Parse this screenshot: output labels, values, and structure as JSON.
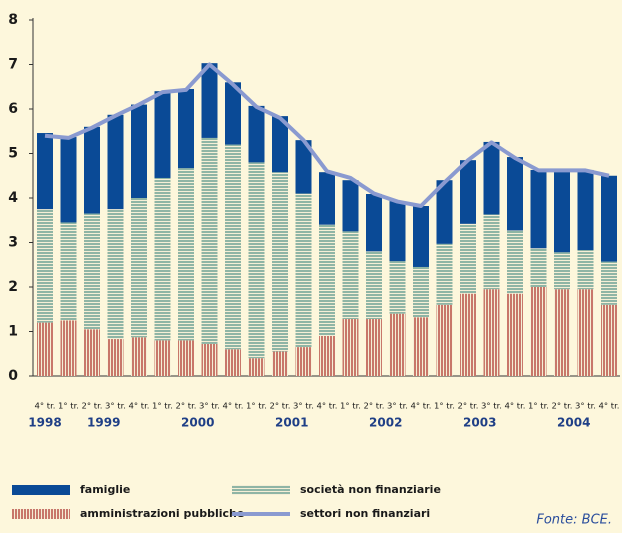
{
  "chart_data": {
    "type": "bar",
    "stacked": true,
    "categories": [
      "4° tr.",
      "1° tr.",
      "2° tr.",
      "3° tr.",
      "4° tr.",
      "1° tr.",
      "2° tr.",
      "3° tr.",
      "4° tr.",
      "1° tr.",
      "2° tr.",
      "3° tr.",
      "4° tr.",
      "1° tr.",
      "2° tr.",
      "3° tr.",
      "4° tr.",
      "1° tr.",
      "2° tr.",
      "3° tr.",
      "4° tr.",
      "1° tr.",
      "2° tr.",
      "3° tr.",
      "4° tr."
    ],
    "years": [
      "1998",
      "1999",
      "2000",
      "2001",
      "2002",
      "2003",
      "2004"
    ],
    "series": [
      {
        "name": "amministrazioni pubbliche",
        "color": "#c8776a",
        "kind": "bar",
        "values": [
          1.2,
          1.25,
          1.05,
          0.83,
          0.87,
          0.8,
          0.8,
          0.72,
          0.6,
          0.4,
          0.55,
          0.65,
          0.9,
          1.28,
          1.28,
          1.4,
          1.32,
          1.6,
          1.85,
          1.95,
          1.85,
          2.0,
          1.95,
          1.95,
          1.6
        ]
      },
      {
        "name": "società non finanziarie",
        "color": "#8fb5a5",
        "kind": "bar",
        "values": [
          2.55,
          2.2,
          2.6,
          2.92,
          3.13,
          3.65,
          3.87,
          4.63,
          4.6,
          4.4,
          4.03,
          3.45,
          2.5,
          1.97,
          1.52,
          1.18,
          1.13,
          1.37,
          1.57,
          1.68,
          1.42,
          0.87,
          0.83,
          0.88,
          0.97
        ]
      },
      {
        "name": "famiglie",
        "color": "#0a4a96",
        "kind": "bar",
        "values": [
          1.71,
          1.92,
          1.95,
          2.12,
          2.1,
          1.95,
          1.78,
          1.68,
          1.4,
          1.27,
          1.26,
          1.2,
          1.18,
          1.15,
          1.29,
          1.35,
          1.37,
          1.43,
          1.43,
          1.63,
          1.65,
          1.76,
          1.85,
          1.8,
          1.93
        ]
      },
      {
        "name": "settori non finanziari",
        "color": "#8a9ad0",
        "kind": "line",
        "values": [
          5.4,
          5.35,
          5.58,
          5.85,
          6.1,
          6.38,
          6.43,
          7.0,
          6.55,
          6.05,
          5.8,
          5.3,
          4.6,
          4.45,
          4.1,
          3.92,
          3.82,
          4.35,
          4.85,
          5.25,
          4.9,
          4.62,
          4.62,
          4.62,
          4.5
        ]
      }
    ],
    "ylim": [
      0,
      8
    ],
    "yticks": [
      0,
      1,
      2,
      3,
      4,
      5,
      6,
      7,
      8
    ],
    "source": "Fonte: BCE."
  }
}
